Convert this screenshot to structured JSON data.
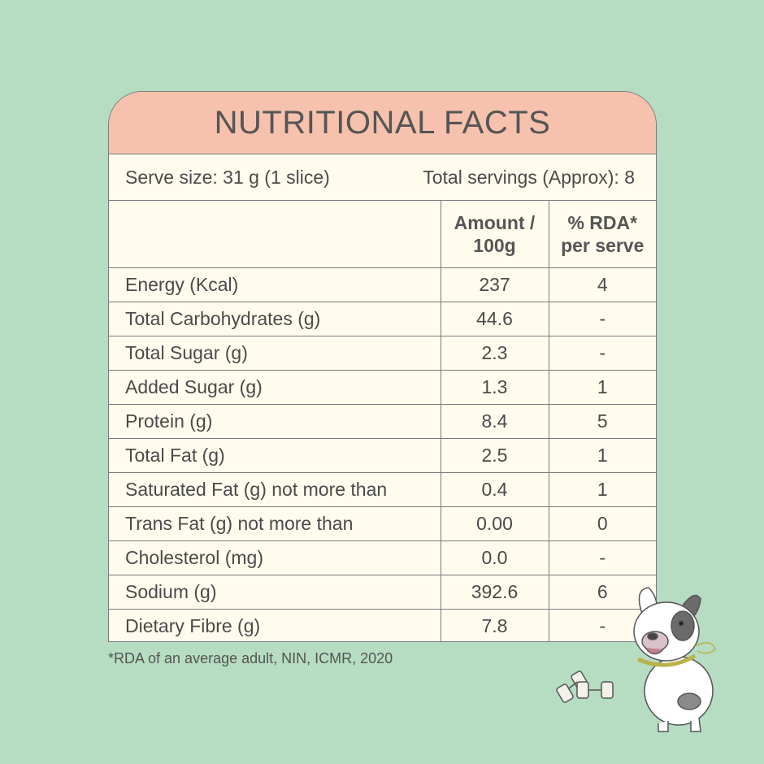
{
  "header": {
    "title": "NUTRITIONAL FACTS"
  },
  "serving": {
    "serve_size": "Serve size: 31 g (1 slice)",
    "total_servings": "Total servings (Approx): 8"
  },
  "table": {
    "columns": [
      [
        "Amount /",
        "100g"
      ],
      [
        "% RDA*",
        "per serve"
      ]
    ],
    "rows": [
      [
        "Energy (Kcal)",
        "237",
        "4"
      ],
      [
        "Total Carbohydrates (g)",
        "44.6",
        "-"
      ],
      [
        "Total Sugar (g)",
        "2.3",
        "-"
      ],
      [
        "Added Sugar (g)",
        "1.3",
        "1"
      ],
      [
        "Protein (g)",
        "8.4",
        "5"
      ],
      [
        "Total Fat (g)",
        "2.5",
        "1"
      ],
      [
        "Saturated Fat (g) not more than",
        "0.4",
        "1"
      ],
      [
        "Trans Fat (g) not more than",
        "0.00",
        "0"
      ],
      [
        "Cholesterol (mg)",
        "0.0",
        "-"
      ],
      [
        "Sodium (g)",
        "392.6",
        "6"
      ],
      [
        "Dietary Fibre (g)",
        "7.8",
        "-"
      ]
    ]
  },
  "footnote": "*RDA of an average adult, NIN, ICMR, 2020"
}
